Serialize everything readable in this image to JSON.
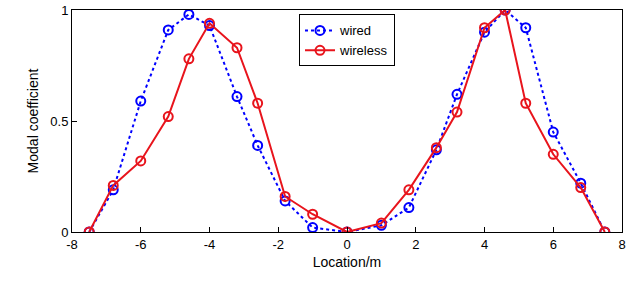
{
  "chart_data": {
    "type": "line",
    "x_label": "Location/m",
    "y_label": "Modal coefficient",
    "x": [
      -7.5,
      -6.8,
      -6,
      -5.2,
      -4.6,
      -4,
      -3.2,
      -2.6,
      -1.8,
      -1,
      0,
      1,
      1.8,
      2.6,
      3.2,
      4,
      4.6,
      5.2,
      6,
      6.8,
      7.5
    ],
    "series": [
      {
        "name": "wired",
        "color": "#0000ff",
        "marker": "circle",
        "line_style": "dot",
        "values": [
          0,
          0.19,
          0.59,
          0.91,
          0.98,
          0.93,
          0.61,
          0.39,
          0.14,
          0.02,
          0,
          0.03,
          0.11,
          0.37,
          0.62,
          0.9,
          1.0,
          0.92,
          0.45,
          0.22,
          0
        ]
      },
      {
        "name": "wireless",
        "color": "#e8141c",
        "marker": "circle",
        "line_style": "solid",
        "values": [
          0,
          0.21,
          0.32,
          0.52,
          0.78,
          0.94,
          0.83,
          0.58,
          0.16,
          0.08,
          0,
          0.04,
          0.19,
          0.38,
          0.54,
          0.92,
          1.0,
          0.58,
          0.35,
          0.2,
          0
        ]
      }
    ],
    "xlim": [
      -8,
      8
    ],
    "xticks": [
      -8,
      -6,
      -4,
      -2,
      0,
      2,
      4,
      6,
      8
    ],
    "ylim": [
      0,
      1
    ],
    "yticks": [
      0,
      0.5,
      1
    ],
    "grid": false,
    "legend": "top"
  }
}
